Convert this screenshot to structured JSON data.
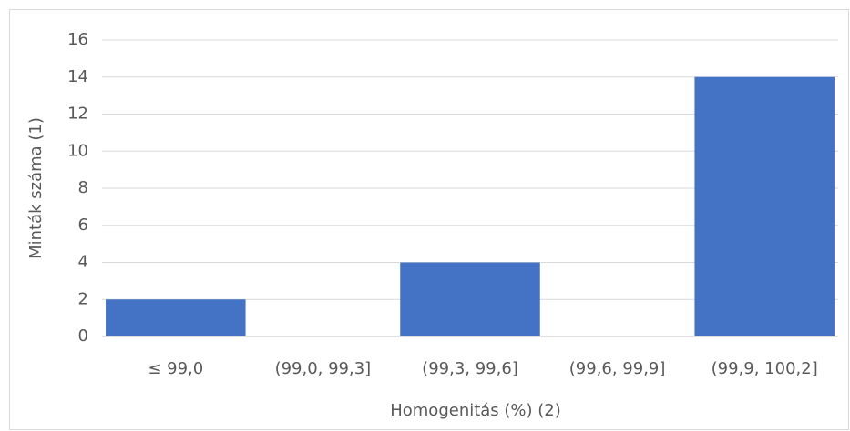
{
  "chart_data": {
    "type": "bar",
    "categories": [
      "≤ 99,0",
      "(99,0, 99,3]",
      "(99,3, 99,6]",
      "(99,6, 99,9]",
      "(99,9, 100,2]"
    ],
    "values": [
      2,
      0,
      4,
      0,
      14
    ],
    "color": "#4472c4",
    "x_label": "Homogenitás (%) (2)",
    "y_label": "Minták száma (1)",
    "ylim": [
      0,
      16
    ],
    "yticks": [
      0,
      2,
      4,
      6,
      8,
      10,
      12,
      14,
      16
    ],
    "grid": true
  }
}
